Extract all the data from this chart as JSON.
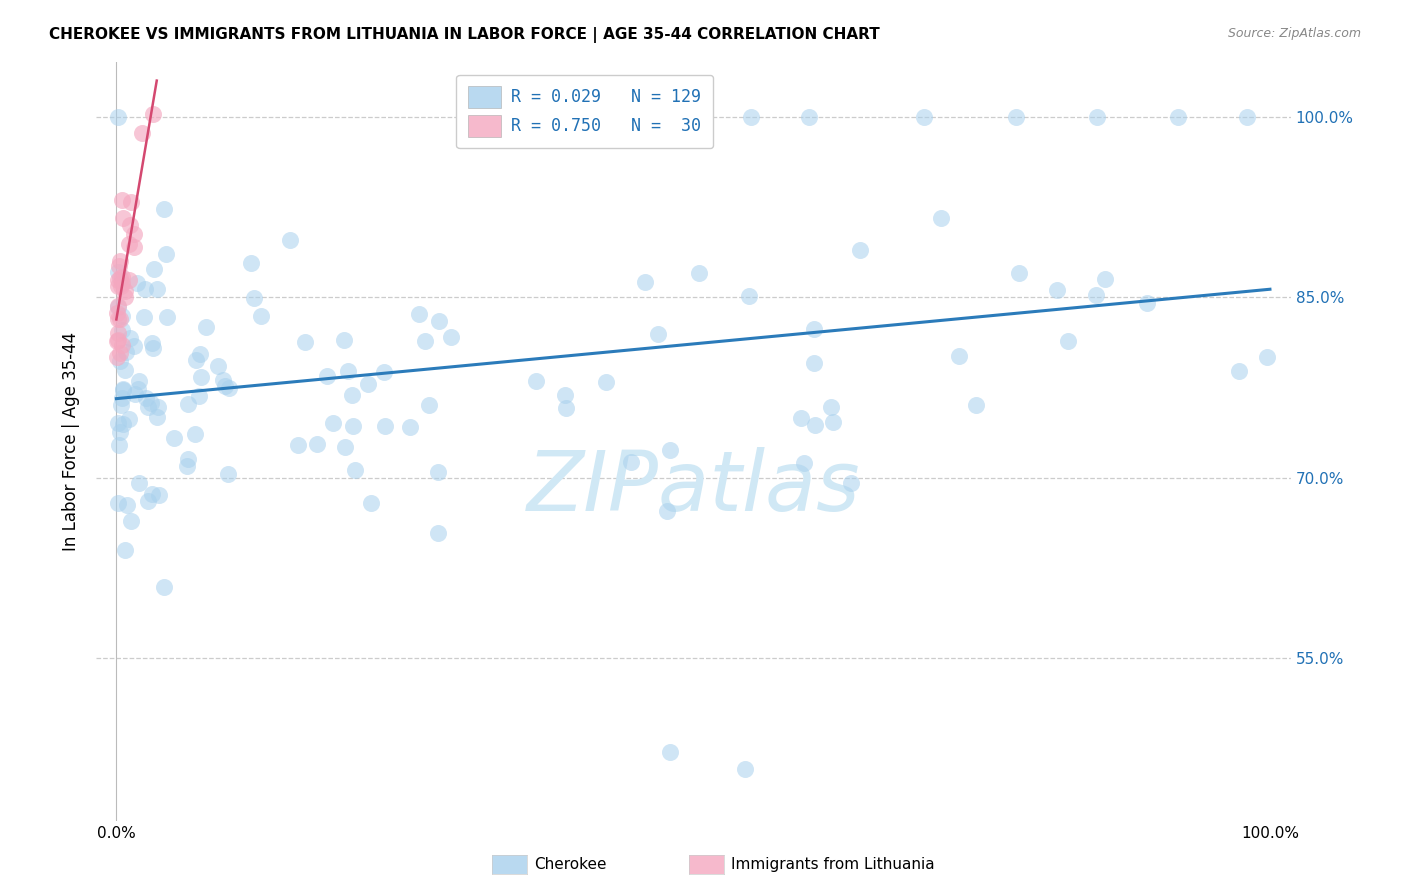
{
  "title": "CHEROKEE VS IMMIGRANTS FROM LITHUANIA IN LABOR FORCE | AGE 35-44 CORRELATION CHART",
  "source": "Source: ZipAtlas.com",
  "ylabel": "In Labor Force | Age 35-44",
  "legend_labels": [
    "Cherokee",
    "Immigrants from Lithuania"
  ],
  "legend_r": [
    0.029,
    0.75
  ],
  "legend_n": [
    129,
    30
  ],
  "blue_color": "#a8d0ed",
  "pink_color": "#f4a8c0",
  "trendline_blue": "#2b7bba",
  "trendline_pink": "#d44870",
  "ytick_vals": [
    0.55,
    0.7,
    0.85,
    1.0
  ],
  "ytick_labels": [
    "55.0%",
    "70.0%",
    "85.0%",
    "100.0%"
  ],
  "xtick_vals": [
    0.0,
    1.0
  ],
  "xtick_labels": [
    "0.0%",
    "100.0%"
  ],
  "xlim": [
    -0.018,
    1.018
  ],
  "ylim": [
    0.415,
    1.045
  ],
  "watermark": "ZIPatlas",
  "watermark_color": "#d0e8f5"
}
